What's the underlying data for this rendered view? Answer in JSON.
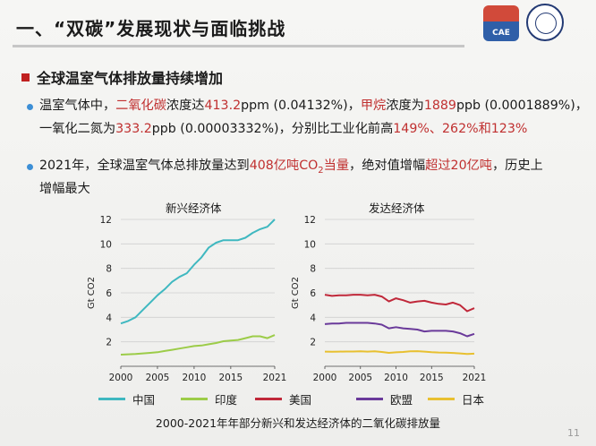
{
  "slide": {
    "title": "一、“双碳”发展现状与面临挑战",
    "section": "全球温室气体排放量持续增加",
    "para1_line1": [
      {
        "t": "温室气体中，",
        "c": ""
      },
      {
        "t": "二氧化碳",
        "c": "red"
      },
      {
        "t": "浓度达",
        "c": ""
      },
      {
        "t": "413.2",
        "c": "red"
      },
      {
        "t": "ppm (0.04132%)，",
        "c": ""
      },
      {
        "t": "甲烷",
        "c": "red"
      },
      {
        "t": "浓度为",
        "c": ""
      },
      {
        "t": "1889",
        "c": "red"
      },
      {
        "t": "ppb (0.0001889%)，",
        "c": ""
      }
    ],
    "para1_line2": [
      {
        "t": "一氧化二氮为",
        "c": ""
      },
      {
        "t": "333.2",
        "c": "red"
      },
      {
        "t": "ppb (0.00003332%)，分别比工业化前高",
        "c": ""
      },
      {
        "t": "149%、262%和123%",
        "c": "red"
      }
    ],
    "para2_line1": [
      {
        "t": "2021年，全球温室气体总排放量达到",
        "c": ""
      },
      {
        "t": "408亿吨CO",
        "c": "red"
      },
      {
        "t": "2",
        "c": "red",
        "sub": true
      },
      {
        "t": "当量",
        "c": "red"
      },
      {
        "t": "，绝对值增幅",
        "c": ""
      },
      {
        "t": "超过20亿吨",
        "c": "red"
      },
      {
        "t": "，历史上",
        "c": ""
      }
    ],
    "para2_line2": [
      {
        "t": "增幅最大",
        "c": ""
      }
    ],
    "logo_text": "CAE",
    "caption": "2000-2021年年部分新兴和发达经济体的二氧化碳排放量",
    "page_number": "11"
  },
  "colors": {
    "china": "#3fb8c0",
    "india": "#9ccc48",
    "usa": "#c0283a",
    "eu": "#6a3a9a",
    "japan": "#e8c030",
    "accent_red": "#c03030",
    "bullet": "#3d8fd6"
  },
  "legend": [
    {
      "name": "中国",
      "key": "china"
    },
    {
      "name": "印度",
      "key": "india"
    },
    {
      "name": "美国",
      "key": "usa"
    },
    {
      "name": "欧盟",
      "key": "eu"
    },
    {
      "name": "日本",
      "key": "japan"
    }
  ],
  "chart_data": [
    {
      "type": "line",
      "title": "新兴经济体",
      "ylabel": "Gt CO2",
      "xlabel": "",
      "ylim": [
        0,
        12
      ],
      "xlim": [
        2000,
        2021
      ],
      "yticks": [
        2,
        4,
        6,
        8,
        10,
        12
      ],
      "xticks": [
        2000,
        2005,
        2010,
        2015,
        2021
      ],
      "grid": true,
      "x": [
        2000,
        2001,
        2002,
        2003,
        2004,
        2005,
        2006,
        2007,
        2008,
        2009,
        2010,
        2011,
        2012,
        2013,
        2014,
        2015,
        2016,
        2017,
        2018,
        2019,
        2020,
        2021
      ],
      "series": [
        {
          "name": "中国",
          "key": "china",
          "values": [
            3.5,
            3.7,
            4.0,
            4.6,
            5.2,
            5.8,
            6.3,
            6.9,
            7.3,
            7.6,
            8.3,
            8.9,
            9.7,
            10.1,
            10.3,
            10.3,
            10.3,
            10.5,
            10.9,
            11.2,
            11.4,
            12.0
          ]
        },
        {
          "name": "印度",
          "key": "india",
          "values": [
            0.95,
            0.98,
            1.0,
            1.05,
            1.1,
            1.15,
            1.25,
            1.35,
            1.45,
            1.55,
            1.65,
            1.7,
            1.8,
            1.9,
            2.05,
            2.1,
            2.15,
            2.3,
            2.45,
            2.45,
            2.3,
            2.55
          ]
        }
      ]
    },
    {
      "type": "line",
      "title": "发达经济体",
      "ylabel": "Gt CO2",
      "xlabel": "",
      "ylim": [
        0,
        12
      ],
      "xlim": [
        2000,
        2021
      ],
      "yticks": [
        2,
        4,
        6,
        8,
        10,
        12
      ],
      "xticks": [
        2000,
        2005,
        2010,
        2015,
        2021
      ],
      "grid": true,
      "x": [
        2000,
        2001,
        2002,
        2003,
        2004,
        2005,
        2006,
        2007,
        2008,
        2009,
        2010,
        2011,
        2012,
        2013,
        2014,
        2015,
        2016,
        2017,
        2018,
        2019,
        2020,
        2021
      ],
      "series": [
        {
          "name": "美国",
          "key": "usa",
          "values": [
            5.85,
            5.75,
            5.8,
            5.8,
            5.85,
            5.85,
            5.8,
            5.85,
            5.7,
            5.3,
            5.55,
            5.4,
            5.2,
            5.3,
            5.35,
            5.2,
            5.1,
            5.05,
            5.2,
            5.0,
            4.5,
            4.75
          ]
        },
        {
          "name": "欧盟",
          "key": "eu",
          "values": [
            3.45,
            3.5,
            3.5,
            3.55,
            3.55,
            3.55,
            3.55,
            3.5,
            3.4,
            3.1,
            3.2,
            3.1,
            3.05,
            3.0,
            2.85,
            2.9,
            2.9,
            2.9,
            2.85,
            2.7,
            2.45,
            2.65
          ]
        },
        {
          "name": "日本",
          "key": "japan",
          "values": [
            1.2,
            1.19,
            1.2,
            1.21,
            1.21,
            1.22,
            1.2,
            1.23,
            1.17,
            1.1,
            1.14,
            1.17,
            1.22,
            1.24,
            1.2,
            1.15,
            1.13,
            1.12,
            1.09,
            1.05,
            1.0,
            1.03
          ]
        }
      ]
    }
  ]
}
